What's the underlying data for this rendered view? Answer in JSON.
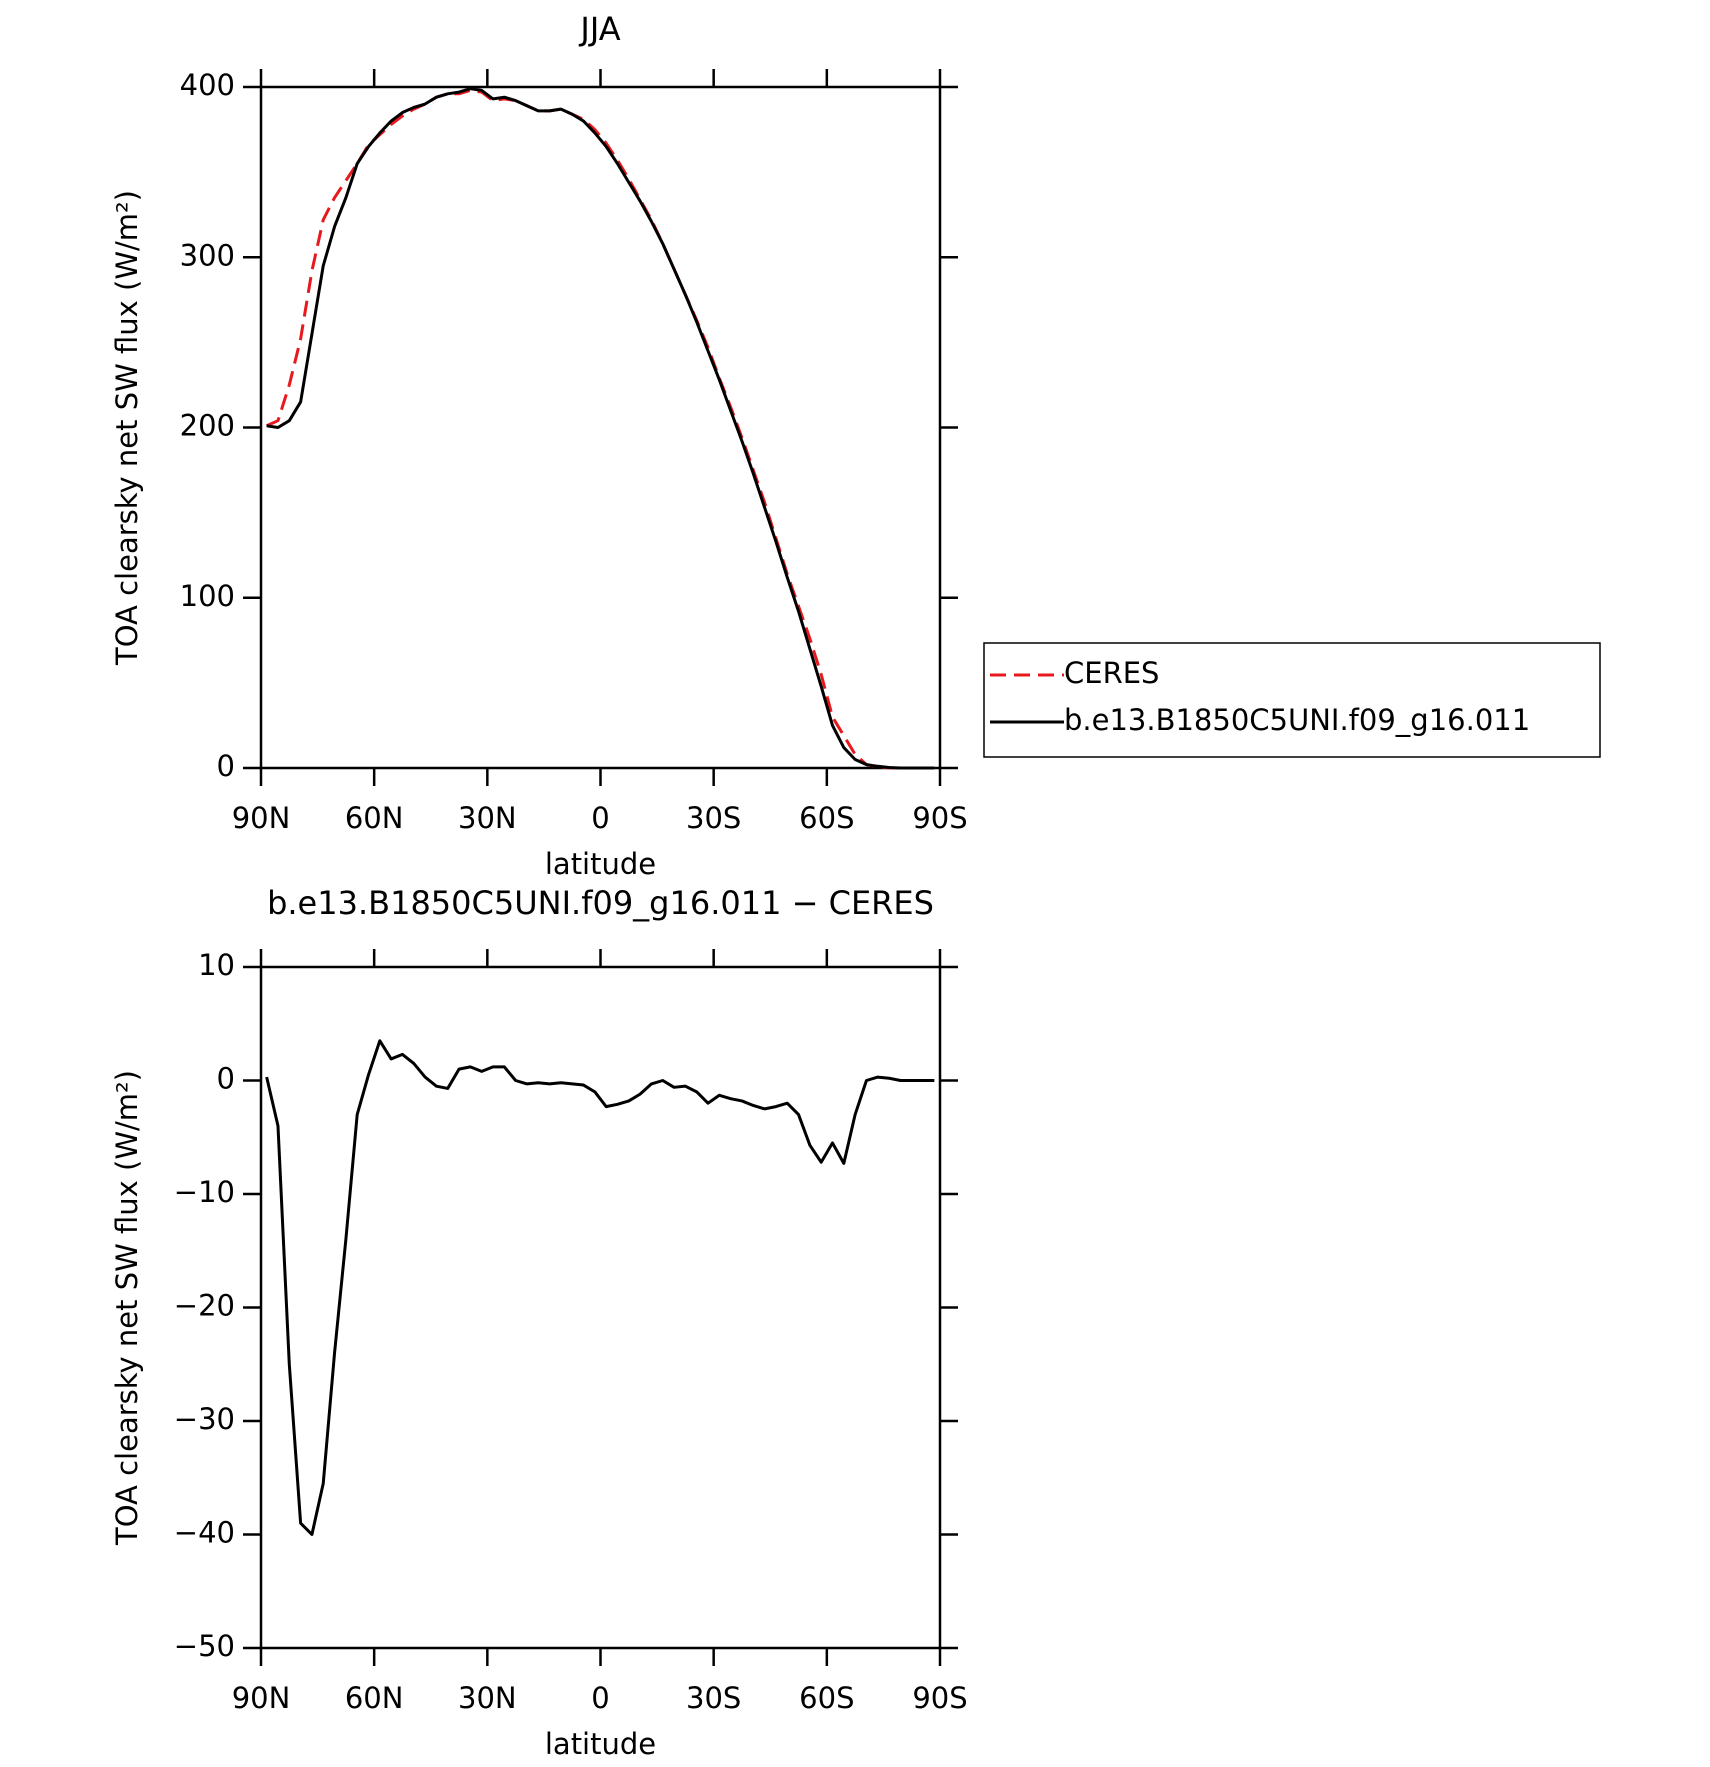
{
  "chart_data": [
    {
      "type": "line",
      "title": "JJA",
      "ylabel": "TOA clearsky net SW flux (W/m²)",
      "xlabel": "latitude",
      "x": [
        88.5,
        85.5,
        82.5,
        79.5,
        76.5,
        73.5,
        70.5,
        67.5,
        64.5,
        61.5,
        58.5,
        55.5,
        52.5,
        49.5,
        46.5,
        43.5,
        40.5,
        37.5,
        34.5,
        31.5,
        28.5,
        25.5,
        22.5,
        19.5,
        16.5,
        13.5,
        10.5,
        7.5,
        4.5,
        1.5,
        -1.5,
        -4.5,
        -7.5,
        -10.5,
        -13.5,
        -16.5,
        -19.5,
        -22.5,
        -25.5,
        -28.5,
        -31.5,
        -34.5,
        -37.5,
        -40.5,
        -43.5,
        -46.5,
        -49.5,
        -52.5,
        -55.5,
        -58.5,
        -61.5,
        -64.5,
        -67.5,
        -70.5,
        -73.5,
        -76.5,
        -79.5,
        -82.5,
        -85.5,
        -88.5
      ],
      "series": [
        {
          "name": "CERES",
          "color": "#e8191c",
          "dash": true,
          "values": [
            201,
            204,
            225,
            252,
            292,
            322,
            335,
            345,
            355,
            366,
            372,
            378,
            383,
            387,
            390,
            394,
            396,
            396,
            398,
            397,
            392,
            393,
            392,
            389,
            386,
            386,
            387,
            384,
            381,
            375,
            367,
            357,
            346,
            334,
            322,
            308,
            293,
            278,
            263,
            247,
            229,
            212,
            194,
            175,
            156,
            135,
            114,
            95,
            76,
            55,
            30,
            19,
            8,
            2,
            0.7,
            0.1,
            0,
            0,
            0,
            0
          ]
        },
        {
          "name": "b.e13.B1850C5UNI.f09_g16.011",
          "color": "#000000",
          "dash": false,
          "values": [
            201,
            200,
            204,
            215,
            255,
            295,
            318,
            335,
            355,
            365,
            373,
            380,
            385,
            388,
            390,
            394,
            396,
            397,
            399,
            398,
            393,
            394,
            392,
            389,
            386,
            386,
            387,
            384,
            380,
            373,
            365,
            355,
            344,
            333,
            321,
            308,
            293,
            278,
            262,
            245,
            228,
            210,
            192,
            173,
            153,
            133,
            112,
            92,
            70,
            48,
            25,
            12,
            5,
            2,
            1,
            0.3,
            0,
            0,
            0,
            0
          ]
        }
      ],
      "xlim": [
        90,
        -90
      ],
      "xticks": [
        {
          "value": 90,
          "label": "90N"
        },
        {
          "value": 60,
          "label": "60N"
        },
        {
          "value": 30,
          "label": "30N"
        },
        0,
        {
          "value": -30,
          "label": "30S"
        },
        {
          "value": -60,
          "label": "60S"
        },
        {
          "value": -90,
          "label": "90S"
        }
      ],
      "ylim": [
        0,
        400
      ],
      "yticks": [
        0,
        100,
        200,
        300,
        400
      ],
      "legend": "right"
    },
    {
      "type": "line",
      "title": "b.e13.B1850C5UNI.f09_g16.011 − CERES",
      "ylabel": "TOA clearsky net SW flux (W/m²)",
      "xlabel": "latitude",
      "x": [
        88.5,
        85.5,
        82.5,
        79.5,
        76.5,
        73.5,
        70.5,
        67.5,
        64.5,
        61.5,
        58.5,
        55.5,
        52.5,
        49.5,
        46.5,
        43.5,
        40.5,
        37.5,
        34.5,
        31.5,
        28.5,
        25.5,
        22.5,
        19.5,
        16.5,
        13.5,
        10.5,
        7.5,
        4.5,
        1.5,
        -1.5,
        -4.5,
        -7.5,
        -10.5,
        -13.5,
        -16.5,
        -19.5,
        -22.5,
        -25.5,
        -28.5,
        -31.5,
        -34.5,
        -37.5,
        -40.5,
        -43.5,
        -46.5,
        -49.5,
        -52.5,
        -55.5,
        -58.5,
        -61.5,
        -64.5,
        -67.5,
        -70.5,
        -73.5,
        -76.5,
        -79.5,
        -82.5,
        -85.5,
        -88.5
      ],
      "series": [
        {
          "color": "#000000",
          "dash": false,
          "values": [
            0.3,
            -4,
            -25,
            -39,
            -40,
            -35.5,
            -24,
            -14,
            -3,
            0.5,
            3.5,
            1.9,
            2.3,
            1.5,
            0.3,
            -0.5,
            -0.7,
            1,
            1.2,
            0.8,
            1.2,
            1.2,
            0,
            -0.3,
            -0.2,
            -0.3,
            -0.2,
            -0.3,
            -0.4,
            -1,
            -2.3,
            -2.1,
            -1.8,
            -1.2,
            -0.3,
            0,
            -0.6,
            -0.5,
            -1,
            -2,
            -1.3,
            -1.6,
            -1.8,
            -2.2,
            -2.5,
            -2.3,
            -2,
            -3,
            -5.7,
            -7.2,
            -5.5,
            -7.3,
            -3,
            0,
            0.3,
            0.2,
            0,
            0,
            0,
            0
          ]
        }
      ],
      "xlim": [
        90,
        -90
      ],
      "xticks": [
        {
          "value": 90,
          "label": "90N"
        },
        {
          "value": 60,
          "label": "60N"
        },
        {
          "value": 30,
          "label": "30N"
        },
        0,
        {
          "value": -30,
          "label": "30S"
        },
        {
          "value": -60,
          "label": "60S"
        },
        {
          "value": -90,
          "label": "90S"
        }
      ],
      "ylim": [
        -50,
        10
      ],
      "yticks": [
        {
          "value": -50,
          "label": "−50"
        },
        {
          "value": -40,
          "label": "−40"
        },
        {
          "value": -30,
          "label": "−30"
        },
        {
          "value": -20,
          "label": "−20"
        },
        {
          "value": -10,
          "label": "−10"
        },
        0,
        10
      ]
    }
  ]
}
